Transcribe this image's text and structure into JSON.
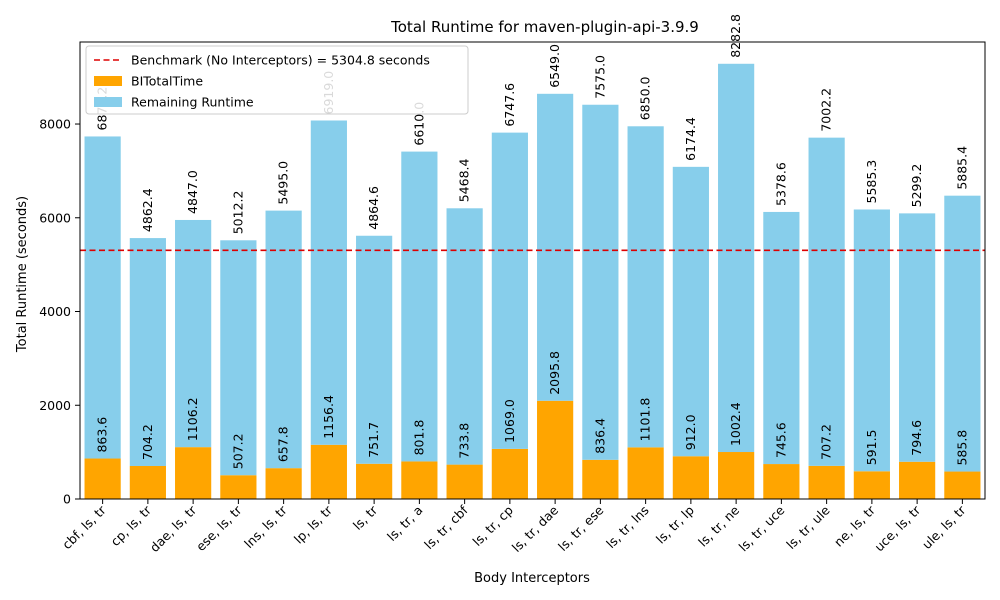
{
  "chart_data": {
    "type": "bar",
    "stacked": true,
    "title": "Total Runtime for maven-plugin-api-3.9.9",
    "xlabel": "Body Interceptors",
    "ylabel": "Total Runtime (seconds)",
    "ylim": [
      0,
      9750
    ],
    "yticks": [
      0,
      2000,
      4000,
      6000,
      8000
    ],
    "legend_position": "upper-left",
    "categories": [
      "cbf, ls, tr",
      "cp, ls, tr",
      "dae, ls, tr",
      "ese, ls, tr",
      "lns, ls, tr",
      "lp, ls, tr",
      "ls, tr",
      "ls, tr, a",
      "ls, tr, cbf",
      "ls, tr, cp",
      "ls, tr, dae",
      "ls, tr, ese",
      "ls, tr, lns",
      "ls, tr, lp",
      "ls, tr, ne",
      "ls, tr, uce",
      "ls, tr, ule",
      "ne, ls, tr",
      "uce, ls, tr",
      "ule, ls, tr"
    ],
    "series": [
      {
        "name": "BITotalTime",
        "color": "#ffa500",
        "values": [
          863.6,
          704.2,
          1106.2,
          507.2,
          657.8,
          1156.4,
          751.7,
          801.8,
          733.8,
          1069.0,
          2095.8,
          836.4,
          1101.8,
          912.0,
          1002.4,
          745.6,
          707.2,
          591.5,
          794.6,
          585.8
        ],
        "labels": [
          "863.6",
          "704.2",
          "1106.2",
          "507.2",
          "657.8",
          "1156.4",
          "751.7",
          "801.8",
          "733.8",
          "1069.0",
          "2095.8",
          "836.4",
          "1101.8",
          "912.0",
          "1002.4",
          "745.6",
          "707.2",
          "591.5",
          "794.6",
          "585.8"
        ]
      },
      {
        "name": "Remaining Runtime",
        "color": "#87ceeb",
        "values": [
          6871.2,
          4862.4,
          4847.0,
          5012.2,
          5495.0,
          6919.0,
          4864.6,
          6610.0,
          5468.4,
          6747.6,
          6549.0,
          7575.0,
          6850.0,
          6174.4,
          8282.8,
          5378.6,
          7002.2,
          5585.3,
          5299.2,
          5885.4
        ],
        "labels": [
          "6871.2",
          "4862.4",
          "4847.0",
          "5012.2",
          "5495.0",
          "6919.0",
          "4864.6",
          "6610.0",
          "5468.4",
          "6747.6",
          "6549.0",
          "7575.0",
          "6850.0",
          "6174.4",
          "8282.8",
          "5378.6",
          "7002.2",
          "5585.3",
          "5299.2",
          "5885.4"
        ]
      }
    ],
    "benchmark": {
      "name": "Benchmark (No Interceptors) = 5304.8 seconds",
      "value": 5304.8,
      "color": "#dd0000",
      "style": "dashed"
    }
  }
}
